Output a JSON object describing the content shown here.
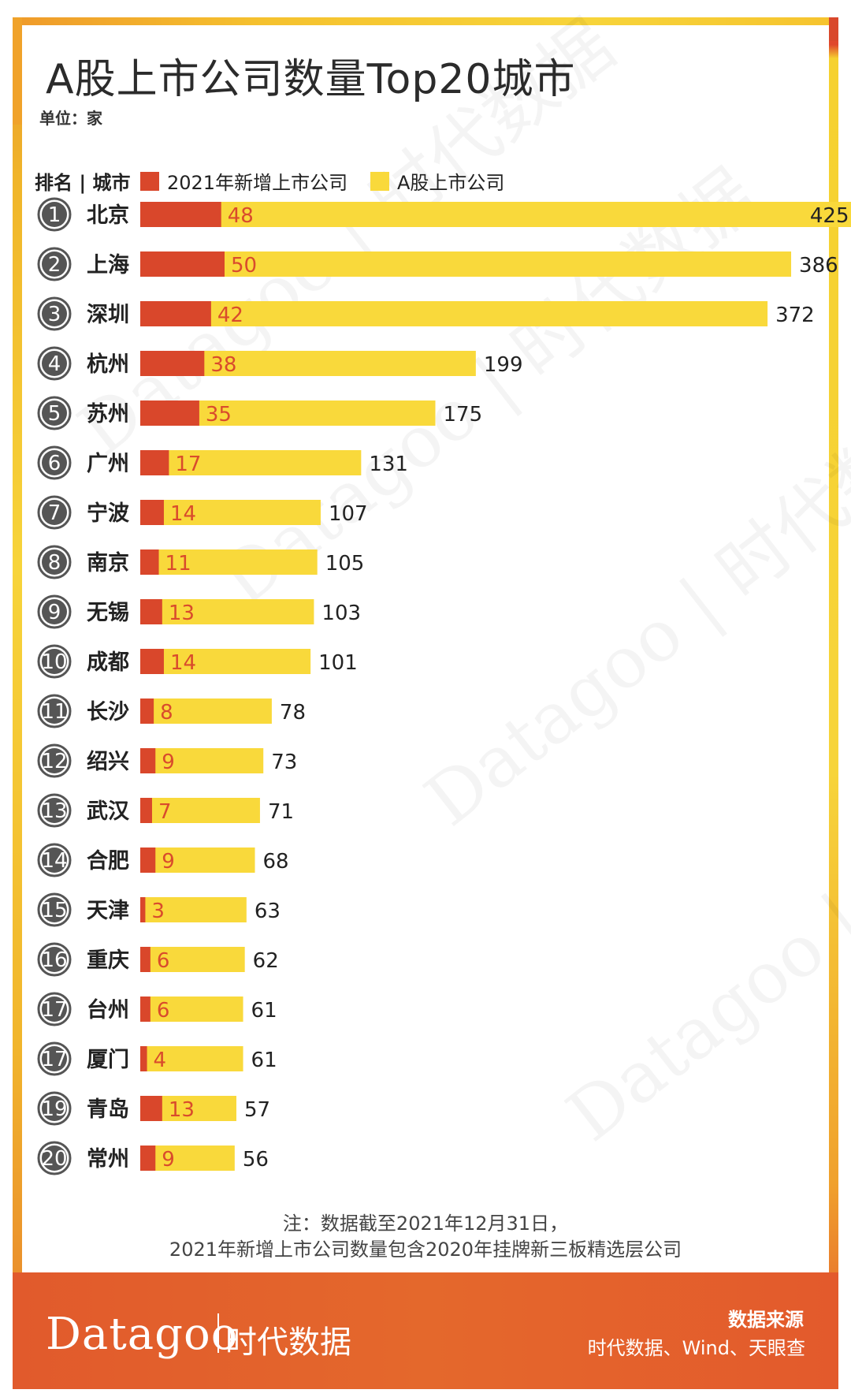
{
  "header": {
    "title": "A股上市公司数量Top20城市",
    "unit": "单位：家"
  },
  "legend": {
    "rank_city": "排名 | 城市",
    "new": "2021年新增上市公司",
    "total": "A股上市公司"
  },
  "colors": {
    "new": "#d9472b",
    "total": "#f9d93b",
    "badge": "#555555",
    "new_label": "#d94b2c",
    "footer": "#e4632c"
  },
  "chart_data": {
    "type": "bar",
    "title": "A股上市公司数量Top20城市",
    "unit": "单位：家",
    "ranks": [
      "1",
      "2",
      "3",
      "4",
      "5",
      "6",
      "7",
      "8",
      "9",
      "10",
      "11",
      "12",
      "13",
      "14",
      "15",
      "16",
      "17",
      "17",
      "19",
      "20"
    ],
    "categories": [
      "北京",
      "上海",
      "深圳",
      "杭州",
      "苏州",
      "广州",
      "宁波",
      "南京",
      "无锡",
      "成都",
      "长沙",
      "绍兴",
      "武汉",
      "合肥",
      "天津",
      "重庆",
      "台州",
      "厦门",
      "青岛",
      "常州"
    ],
    "series": [
      {
        "name": "2021年新增上市公司",
        "values": [
          48,
          50,
          42,
          38,
          35,
          17,
          14,
          11,
          13,
          14,
          8,
          9,
          7,
          9,
          3,
          6,
          6,
          4,
          13,
          9
        ]
      },
      {
        "name": "A股上市公司",
        "values": [
          425,
          386,
          372,
          199,
          175,
          131,
          107,
          105,
          103,
          101,
          78,
          73,
          71,
          68,
          63,
          62,
          61,
          61,
          57,
          56
        ]
      }
    ],
    "xlim": [
      0,
      425
    ],
    "orientation": "horizontal",
    "legend": "top-left"
  },
  "note": {
    "line1": "注：数据截至2021年12月31日，",
    "line2": "2021年新增上市公司数量包含2020年挂牌新三板精选层公司"
  },
  "footer": {
    "brand": "Datagoo",
    "brand_cn": "时代数据",
    "source_title": "数据来源",
    "source_text": "时代数据、Wind、天眼查"
  }
}
